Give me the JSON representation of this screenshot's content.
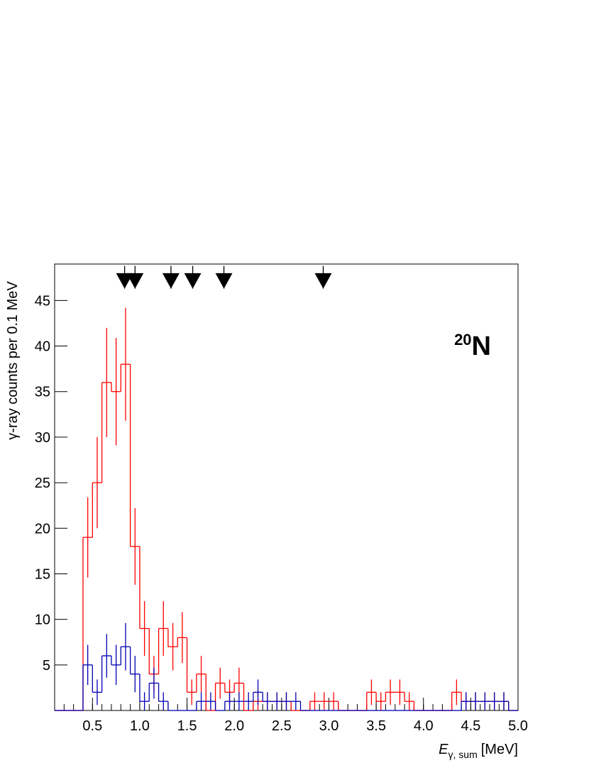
{
  "chart_data": {
    "type": "histogram",
    "ylabel": "γ-ray counts per 0.1 MeV",
    "xlabel": {
      "symbol": "E",
      "subscript": "γ, sum",
      "unit": "[MeV]"
    },
    "annotation": {
      "mass": "20",
      "element": "N"
    },
    "xlim": [
      0.1,
      5.0
    ],
    "ylim": [
      0,
      49
    ],
    "xticks": [
      0.5,
      {
        "value": 1,
        "label": "1.0"
      },
      1.5,
      {
        "value": 2,
        "label": "2.0"
      },
      2.5,
      {
        "value": 3,
        "label": "3.0"
      },
      3.5,
      {
        "value": 4,
        "label": "4.0"
      },
      4.5,
      {
        "value": 5,
        "label": "5.0"
      }
    ],
    "yticks": [
      5,
      10,
      15,
      20,
      25,
      30,
      35,
      40,
      45
    ],
    "bins": [
      0.1,
      0.2,
      0.3,
      0.4,
      0.5,
      0.6,
      0.7,
      0.8,
      0.9,
      1.0,
      1.1,
      1.2,
      1.3,
      1.4,
      1.5,
      1.6,
      1.7,
      1.8,
      1.9,
      2.0,
      2.1,
      2.2,
      2.3,
      2.4,
      2.5,
      2.6,
      2.7,
      2.8,
      2.9,
      3.0,
      3.1,
      3.2,
      3.3,
      3.4,
      3.5,
      3.6,
      3.7,
      3.8,
      3.9,
      4.0,
      4.1,
      4.2,
      4.3,
      4.4,
      4.5,
      4.6,
      4.7,
      4.8,
      4.9,
      5.0
    ],
    "series": [
      {
        "color": "#ff0000",
        "values": [
          0,
          0,
          0,
          19,
          25,
          36,
          35,
          38,
          18,
          9,
          4,
          9,
          7,
          8,
          2,
          4,
          0,
          3,
          2,
          3,
          0,
          1,
          1,
          1,
          1,
          0,
          0,
          1,
          1,
          1,
          0,
          0,
          0,
          2,
          1,
          2,
          2,
          1,
          0,
          0,
          0,
          0,
          2,
          1,
          1,
          1,
          1,
          1,
          0
        ],
        "errors": [
          0,
          0,
          0,
          4.4,
          5,
          6,
          5.9,
          6.2,
          4.2,
          3,
          2,
          3,
          2.6,
          2.8,
          1.4,
          2,
          0,
          1.7,
          1.4,
          1.7,
          0,
          1,
          1,
          1,
          1,
          0,
          0,
          1,
          1,
          1,
          0,
          0,
          0,
          1.4,
          1,
          1.4,
          1.4,
          1,
          0,
          0,
          0,
          0,
          1.4,
          1,
          1,
          1,
          1,
          1,
          0
        ]
      },
      {
        "color": "#0000b3",
        "values": [
          0,
          0,
          0,
          5,
          2,
          6,
          5,
          7,
          4,
          1,
          3,
          1,
          0,
          0,
          0,
          1,
          1,
          0,
          1,
          1,
          1,
          2,
          1,
          1,
          1,
          1,
          0,
          0,
          0,
          0,
          0,
          0,
          0,
          0,
          0,
          0,
          0,
          0,
          0,
          0,
          0,
          0,
          0,
          1,
          1,
          1,
          1,
          1,
          0
        ],
        "errors": [
          0,
          0,
          0,
          2.2,
          1.4,
          2.4,
          2.2,
          2.6,
          2,
          1,
          1.7,
          1,
          0,
          0,
          0,
          1,
          1,
          0,
          1,
          1,
          1,
          1.4,
          1,
          1,
          1,
          1,
          0,
          0,
          0,
          0,
          0,
          0,
          0,
          0,
          0,
          0,
          0,
          0,
          0,
          0,
          0,
          0,
          0,
          1,
          1,
          1,
          1,
          1,
          0
        ]
      }
    ],
    "arrows": [
      0.84,
      0.95,
      1.33,
      1.56,
      1.89,
      2.94
    ]
  }
}
